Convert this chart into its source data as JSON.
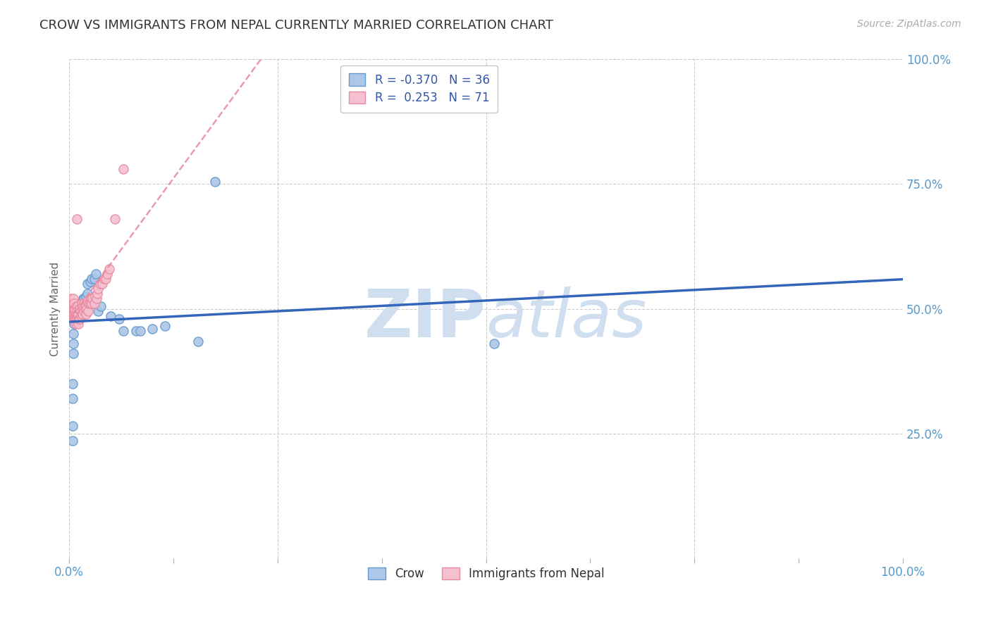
{
  "title": "CROW VS IMMIGRANTS FROM NEPAL CURRENTLY MARRIED CORRELATION CHART",
  "source": "Source: ZipAtlas.com",
  "ylabel": "Currently Married",
  "background_color": "#ffffff",
  "crow_color": "#aec6e8",
  "crow_edge_color": "#6699cc",
  "nepal_color": "#f5c0d0",
  "nepal_edge_color": "#e88aa0",
  "crow_R": -0.37,
  "crow_N": 36,
  "nepal_R": 0.253,
  "nepal_N": 71,
  "crow_line_color": "#3366bb",
  "nepal_line_color": "#e88899",
  "title_color": "#333333",
  "title_fontsize": 13,
  "axis_label_color": "#5599cc",
  "watermark_color": "#d0dff0",
  "crow_scatter_x": [
    0.004,
    0.004,
    0.004,
    0.004,
    0.005,
    0.005,
    0.005,
    0.006,
    0.008,
    0.01,
    0.012,
    0.012,
    0.013,
    0.015,
    0.016,
    0.017,
    0.018,
    0.02,
    0.022,
    0.022,
    0.025,
    0.027,
    0.03,
    0.032,
    0.035,
    0.038,
    0.05,
    0.06,
    0.065,
    0.08,
    0.085,
    0.1,
    0.115,
    0.155,
    0.175,
    0.51
  ],
  "crow_scatter_y": [
    0.235,
    0.265,
    0.32,
    0.35,
    0.41,
    0.43,
    0.45,
    0.47,
    0.48,
    0.49,
    0.5,
    0.51,
    0.51,
    0.51,
    0.515,
    0.52,
    0.52,
    0.525,
    0.53,
    0.55,
    0.555,
    0.56,
    0.56,
    0.57,
    0.495,
    0.505,
    0.485,
    0.48,
    0.455,
    0.455,
    0.455,
    0.46,
    0.465,
    0.435,
    0.755,
    0.43
  ],
  "nepal_scatter_x": [
    0.001,
    0.001,
    0.001,
    0.002,
    0.002,
    0.002,
    0.002,
    0.003,
    0.003,
    0.003,
    0.004,
    0.004,
    0.004,
    0.005,
    0.005,
    0.005,
    0.005,
    0.005,
    0.006,
    0.006,
    0.006,
    0.006,
    0.007,
    0.007,
    0.008,
    0.008,
    0.008,
    0.009,
    0.009,
    0.009,
    0.01,
    0.01,
    0.01,
    0.011,
    0.011,
    0.012,
    0.012,
    0.013,
    0.013,
    0.014,
    0.015,
    0.015,
    0.016,
    0.016,
    0.017,
    0.018,
    0.018,
    0.019,
    0.02,
    0.02,
    0.021,
    0.022,
    0.023,
    0.024,
    0.025,
    0.026,
    0.027,
    0.028,
    0.03,
    0.031,
    0.033,
    0.034,
    0.035,
    0.037,
    0.04,
    0.042,
    0.044,
    0.046,
    0.048,
    0.055,
    0.065
  ],
  "nepal_scatter_y": [
    0.5,
    0.51,
    0.52,
    0.495,
    0.5,
    0.505,
    0.51,
    0.49,
    0.5,
    0.51,
    0.485,
    0.495,
    0.505,
    0.48,
    0.49,
    0.5,
    0.51,
    0.52,
    0.475,
    0.49,
    0.5,
    0.51,
    0.485,
    0.5,
    0.47,
    0.49,
    0.505,
    0.48,
    0.5,
    0.68,
    0.475,
    0.49,
    0.505,
    0.47,
    0.49,
    0.48,
    0.5,
    0.48,
    0.5,
    0.485,
    0.49,
    0.51,
    0.49,
    0.505,
    0.5,
    0.495,
    0.51,
    0.5,
    0.49,
    0.505,
    0.5,
    0.515,
    0.495,
    0.51,
    0.51,
    0.52,
    0.51,
    0.52,
    0.51,
    0.525,
    0.52,
    0.53,
    0.54,
    0.55,
    0.55,
    0.56,
    0.56,
    0.57,
    0.58,
    0.68,
    0.78
  ]
}
